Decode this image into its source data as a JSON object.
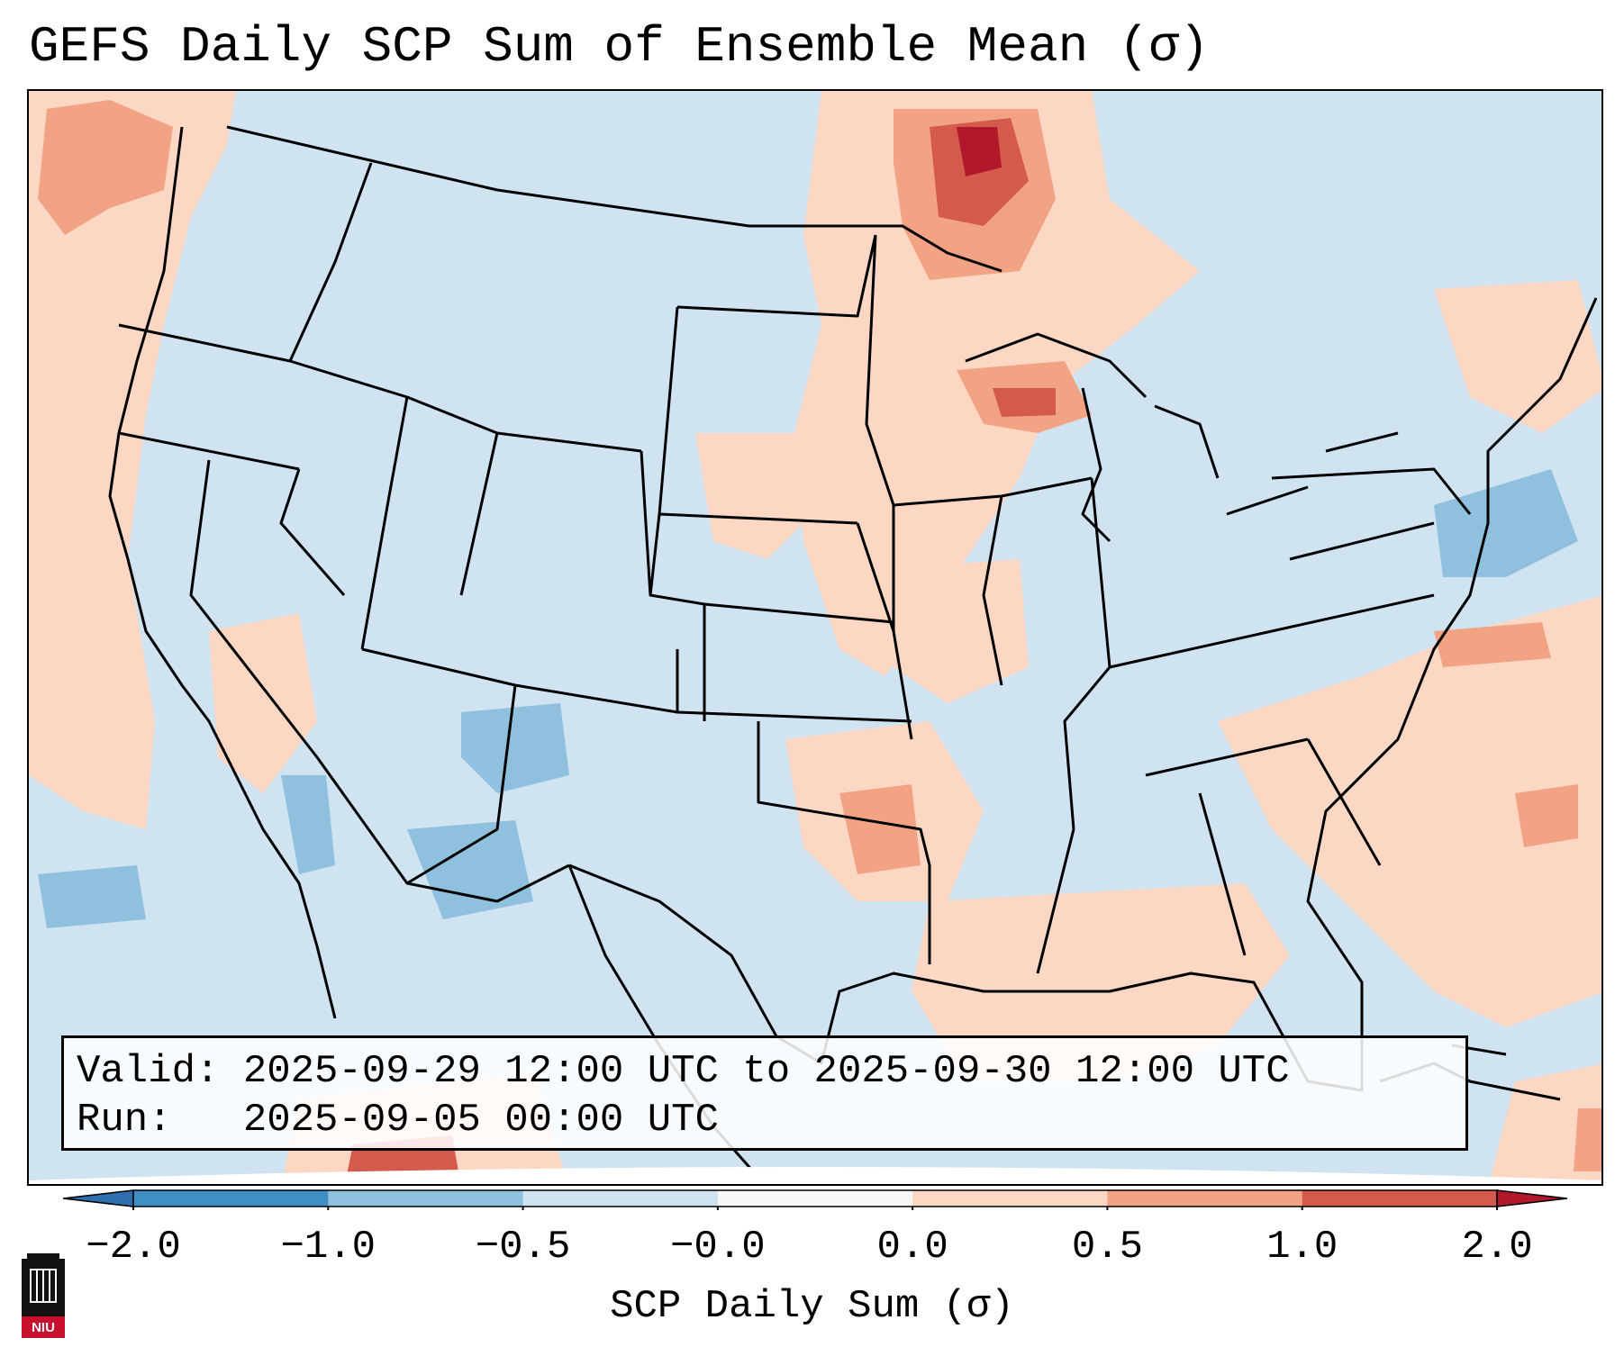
{
  "title": "GEFS Daily SCP Sum of Ensemble Mean (σ)",
  "info": {
    "valid_line": "Valid: 2025-09-29 12:00 UTC to 2025-09-30 12:00 UTC",
    "run_line": "Run:   2025-09-05 00:00 UTC"
  },
  "colorbar": {
    "label": "SCP Daily Sum (σ)",
    "ticks": [
      "−2.0",
      "−1.0",
      "−0.5",
      "−0.0",
      "0.0",
      "0.5",
      "1.0",
      "2.0"
    ],
    "bins": [
      {
        "range": [
          -2.0,
          -1.0
        ],
        "color": "#3f8fc5"
      },
      {
        "range": [
          -1.0,
          -0.5
        ],
        "color": "#8fc1de"
      },
      {
        "range": [
          -0.5,
          -0.0
        ],
        "color": "#cfe3f0"
      },
      {
        "range": [
          -0.0,
          0.0
        ],
        "color": "#f7f7f7"
      },
      {
        "range": [
          0.0,
          0.5
        ],
        "color": "#fbd7c4"
      },
      {
        "range": [
          0.5,
          1.0
        ],
        "color": "#f1a383"
      },
      {
        "range": [
          1.0,
          2.0
        ],
        "color": "#d45a4c"
      }
    ],
    "extend_under_color": "#2f6fb0",
    "extend_over_color": "#b2182b"
  },
  "logo": {
    "text": "NIU"
  },
  "map": {
    "projection": "Lambert conformal, CONUS",
    "background_category": "-0.5 to -0.0"
  }
}
